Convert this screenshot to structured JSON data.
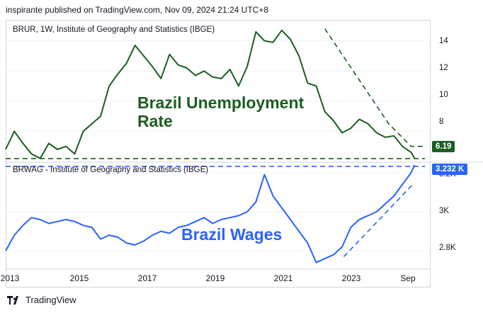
{
  "header": {
    "published": "inspirante published on TradingView.com, Nov 09, 2024 21:24 UTC+8"
  },
  "colors": {
    "unemployment": "#1b5e20",
    "wages": "#2962ff",
    "grid": "#d1d4dc"
  },
  "panes": {
    "top": {
      "title": "BRUR, 1W, Institute of Geography and Statistics (IBGE)",
      "yticks": [
        "14",
        "12",
        "10",
        "8"
      ],
      "last_value": "6.19",
      "annotation_line1": "Brazil Unemployment",
      "annotation_line2": "Rate"
    },
    "bottom": {
      "title": "BRWAG - Institute of Geography and Statistics (IBGE)",
      "yticks": [
        "3.2K",
        "3K",
        "2.8K"
      ],
      "last_value": "3.232 K",
      "annotation": "Brazil Wages"
    }
  },
  "xaxis": {
    "ticks": [
      "2013",
      "2015",
      "2017",
      "2019",
      "2021",
      "2023",
      "Sep"
    ]
  },
  "footer": {
    "brand": "TradingView",
    "logo_icon": "tradingview-logo-icon"
  },
  "chart_data": [
    {
      "type": "line",
      "title": "BRUR, 1W, Institute of Geography and Statistics (IBGE)",
      "annotation": "Brazil Unemployment Rate",
      "ylim": [
        6.0,
        15.3
      ],
      "yticks": [
        14,
        12,
        10,
        8
      ],
      "last_value": 6.19,
      "series": [
        {
          "name": "BRUR",
          "color": "#1b5e20",
          "x": [
            2012.75,
            2013.0,
            2013.25,
            2013.5,
            2013.75,
            2014.0,
            2014.25,
            2014.5,
            2014.75,
            2015.0,
            2015.25,
            2015.5,
            2015.75,
            2016.0,
            2016.25,
            2016.5,
            2016.75,
            2017.0,
            2017.25,
            2017.5,
            2017.75,
            2018.0,
            2018.25,
            2018.5,
            2018.75,
            2019.0,
            2019.25,
            2019.5,
            2019.75,
            2020.0,
            2020.25,
            2020.5,
            2020.75,
            2021.0,
            2021.25,
            2021.5,
            2021.75,
            2022.0,
            2022.25,
            2022.5,
            2022.75,
            2023.0,
            2023.25,
            2023.5,
            2023.75,
            2024.0,
            2024.25,
            2024.5,
            2024.6
          ],
          "values": [
            6.8,
            8.0,
            7.2,
            6.5,
            6.2,
            7.2,
            6.8,
            7.0,
            6.5,
            8.0,
            8.5,
            9.0,
            11.0,
            11.8,
            12.5,
            13.7,
            13.0,
            12.3,
            11.5,
            13.1,
            12.4,
            12.2,
            11.7,
            12.0,
            11.6,
            11.5,
            12.1,
            11.0,
            12.3,
            14.6,
            14.0,
            13.9,
            14.7,
            14.1,
            13.0,
            11.2,
            11.0,
            9.3,
            8.7,
            7.9,
            8.2,
            8.8,
            8.5,
            7.9,
            7.6,
            7.7,
            7.0,
            6.6,
            6.2
          ]
        }
      ],
      "projection": {
        "x": [
          2022.0,
          2023.85,
          2024.5,
          2024.9
        ],
        "values": [
          14.8,
          8.5,
          7.0,
          7.0
        ]
      }
    },
    {
      "type": "line",
      "title": "BRWAG - Institute of Geography and Statistics (IBGE)",
      "annotation": "Brazil Wages",
      "ylim": [
        2.71,
        3.25
      ],
      "yticks": [
        3.2,
        3.0,
        2.8
      ],
      "last_value": 3.232,
      "series": [
        {
          "name": "BRWAG",
          "color": "#2962ff",
          "x": [
            2012.75,
            2013.0,
            2013.25,
            2013.5,
            2013.75,
            2014.0,
            2014.25,
            2014.5,
            2014.75,
            2015.0,
            2015.25,
            2015.5,
            2015.75,
            2016.0,
            2016.25,
            2016.5,
            2016.75,
            2017.0,
            2017.25,
            2017.5,
            2017.75,
            2018.0,
            2018.25,
            2018.5,
            2018.75,
            2019.0,
            2019.25,
            2019.5,
            2019.75,
            2020.0,
            2020.25,
            2020.5,
            2020.75,
            2021.0,
            2021.25,
            2021.5,
            2021.75,
            2022.0,
            2022.25,
            2022.5,
            2022.75,
            2023.0,
            2023.25,
            2023.5,
            2023.75,
            2024.0,
            2024.25,
            2024.5,
            2024.6
          ],
          "values": [
            2.8,
            2.88,
            2.93,
            2.97,
            2.96,
            2.94,
            2.95,
            2.96,
            2.95,
            2.93,
            2.92,
            2.86,
            2.88,
            2.87,
            2.84,
            2.83,
            2.85,
            2.88,
            2.9,
            2.89,
            2.92,
            2.93,
            2.95,
            2.97,
            2.94,
            2.96,
            2.97,
            2.98,
            3.0,
            3.05,
            3.19,
            3.08,
            3.02,
            2.96,
            2.9,
            2.84,
            2.74,
            2.76,
            2.78,
            2.82,
            2.92,
            2.96,
            2.98,
            3.0,
            3.04,
            3.08,
            3.14,
            3.2,
            3.24
          ]
        }
      ],
      "projection": {
        "x": [
          2022.55,
          2024.55
        ],
        "values": [
          2.77,
          3.14
        ]
      }
    }
  ]
}
